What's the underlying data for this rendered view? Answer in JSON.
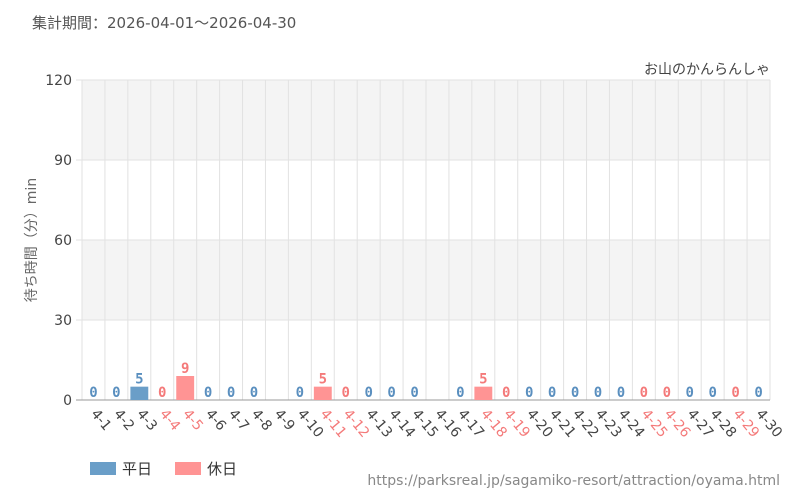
{
  "period_label": "集計期間：2026-04-01〜2026-04-30",
  "source_url": "https://parksreal.jp/sagamiko-resort/attraction/oyama.html",
  "legend": {
    "weekday": "平日",
    "holiday": "休日"
  },
  "colors": {
    "weekday": "#6a9ec8",
    "holiday": "#ff9494",
    "weekday_text": "#5a8fbf",
    "holiday_text": "#f47a7a",
    "band": "#f4f4f4",
    "grid": "#e2e2e2"
  },
  "chart_data": {
    "type": "bar",
    "title": "お山のかんらんしゃ",
    "ylabel": "待ち時間（分）min",
    "xlabel": "",
    "ylim": [
      0,
      120
    ],
    "yticks": [
      0,
      30,
      60,
      90,
      120
    ],
    "categories": [
      "4-1",
      "4-2",
      "4-3",
      "4-4",
      "4-5",
      "4-6",
      "4-7",
      "4-8",
      "4-9",
      "4-10",
      "4-11",
      "4-12",
      "4-13",
      "4-14",
      "4-15",
      "4-16",
      "4-17",
      "4-18",
      "4-19",
      "4-20",
      "4-21",
      "4-22",
      "4-23",
      "4-24",
      "4-25",
      "4-26",
      "4-27",
      "4-28",
      "4-29",
      "4-30"
    ],
    "day_type": [
      "weekday",
      "weekday",
      "weekday",
      "holiday",
      "holiday",
      "weekday",
      "weekday",
      "weekday",
      "none",
      "weekday",
      "holiday",
      "holiday",
      "weekday",
      "weekday",
      "weekday",
      "none",
      "weekday",
      "holiday",
      "holiday",
      "weekday",
      "weekday",
      "weekday",
      "weekday",
      "weekday",
      "holiday",
      "holiday",
      "weekday",
      "weekday",
      "holiday",
      "weekday"
    ],
    "values": [
      0,
      0,
      5,
      0,
      9,
      0,
      0,
      0,
      null,
      0,
      5,
      0,
      0,
      0,
      0,
      null,
      0,
      5,
      0,
      0,
      0,
      0,
      0,
      0,
      0,
      0,
      0,
      0,
      0,
      0
    ],
    "grid": true
  }
}
